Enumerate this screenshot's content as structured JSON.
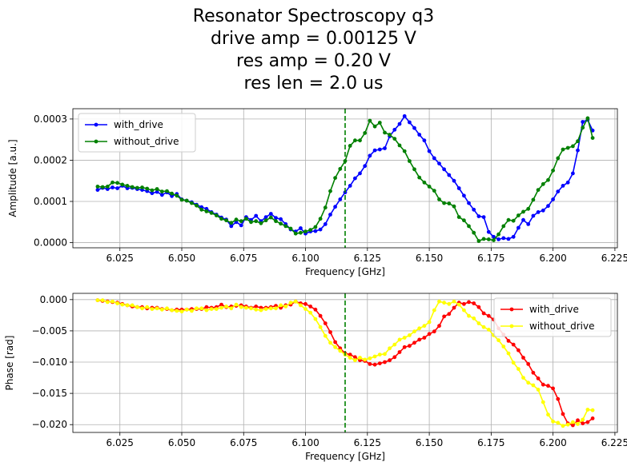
{
  "title": [
    "Resonator Spectroscopy q3",
    "drive amp = 0.00125 V",
    "res amp = 0.20 V",
    "res len = 2.0 us"
  ],
  "chart_data": [
    {
      "type": "line",
      "xlabel": "Frequency [GHz]",
      "ylabel": "Amplitude [a.u.]",
      "xlim": [
        6.006,
        6.226
      ],
      "ylim": [
        -1.25e-05,
        0.000325
      ],
      "xticks": [
        "6.025",
        "6.050",
        "6.075",
        "6.100",
        "6.125",
        "6.150",
        "6.175",
        "6.200",
        "6.225"
      ],
      "xtick_values": [
        6.025,
        6.05,
        6.075,
        6.1,
        6.125,
        6.15,
        6.175,
        6.2,
        6.225
      ],
      "yticks": [
        "0.0000",
        "0.0001",
        "0.0002",
        "0.0003"
      ],
      "ytick_values": [
        0,
        0.0001,
        0.0002,
        0.0003
      ],
      "grid": true,
      "legend": "top-left",
      "vline": {
        "x": 6.116,
        "color": "#008000",
        "style": "dashed"
      },
      "x": {
        "start": 6.016,
        "stop": 6.216,
        "count": 101
      },
      "series": [
        {
          "name": "with_drive",
          "color": "#0000ff",
          "values": [
            0.000128,
            0.000133,
            0.00013,
            0.000134,
            0.000132,
            0.000138,
            0.000132,
            0.000133,
            0.00013,
            0.000128,
            0.000125,
            0.00012,
            0.000123,
            0.000116,
            0.000122,
            0.000113,
            0.000118,
            0.000105,
            0.000102,
            9.8e-05,
            9.2e-05,
            8.6e-05,
            8.2e-05,
            7.4e-05,
            6.8e-05,
            6.1e-05,
            5.6e-05,
            4e-05,
            5e-05,
            4.2e-05,
            6.2e-05,
            5.5e-05,
            6.5e-05,
            5.2e-05,
            6.2e-05,
            7e-05,
            6e-05,
            5.7e-05,
            4.5e-05,
            3.2e-05,
            2.7e-05,
            3.5e-05,
            2.2e-05,
            2.7e-05,
            2.8e-05,
            3.2e-05,
            4.5e-05,
            6.8e-05,
            8.7e-05,
            0.000105,
            0.000122,
            0.000138,
            0.000156,
            0.000168,
            0.000186,
            0.000211,
            0.000224,
            0.000226,
            0.000229,
            0.000258,
            0.000274,
            0.000288,
            0.000307,
            0.000292,
            0.000278,
            0.000262,
            0.000248,
            0.000222,
            0.000205,
            0.000192,
            0.000178,
            0.000164,
            0.00015,
            0.000132,
            0.000114,
            9.6e-05,
            8e-05,
            6.4e-05,
            6.2e-05,
            2.6e-05,
            1.4e-05,
            8e-06,
            1.1e-05,
            9e-06,
            1.4e-05,
            3.6e-05,
            5.5e-05,
            4.5e-05,
            6.5e-05,
            7.4e-05,
            7.8e-05,
            8.9e-05,
            0.000105,
            0.000124,
            0.000138,
            0.000146,
            0.000168,
            0.000224,
            0.000293,
            0.000298,
            0.000272
          ]
        },
        {
          "name": "without_drive",
          "color": "#008000",
          "values": [
            0.000136,
            0.000135,
            0.000136,
            0.000146,
            0.000145,
            0.000141,
            0.000138,
            0.000135,
            0.000133,
            0.000134,
            0.000131,
            0.000127,
            0.00013,
            0.000124,
            0.000125,
            0.000119,
            0.000114,
            0.000104,
            0.000102,
            9.6e-05,
            9e-05,
            8e-05,
            7.6e-05,
            7.2e-05,
            6.6e-05,
            5.8e-05,
            5.4e-05,
            4.8e-05,
            5.6e-05,
            5.2e-05,
            5.8e-05,
            5e-05,
            5.2e-05,
            4.7e-05,
            5.4e-05,
            6.1e-05,
            5.2e-05,
            4.6e-05,
            4e-05,
            3.4e-05,
            2.2e-05,
            2.4e-05,
            2.7e-05,
            3.1e-05,
            3.8e-05,
            5.8e-05,
            8.5e-05,
            0.000125,
            0.000157,
            0.000179,
            0.000198,
            0.000235,
            0.000248,
            0.000248,
            0.000266,
            0.000296,
            0.000282,
            0.000291,
            0.000267,
            0.000262,
            0.000252,
            0.000236,
            0.000222,
            0.000198,
            0.000178,
            0.000158,
            0.000146,
            0.000136,
            0.000126,
            0.000105,
            9.6e-05,
            9.5e-05,
            8.8e-05,
            6.2e-05,
            5.4e-05,
            4e-05,
            2.4e-05,
            4e-06,
            9e-06,
            8e-06,
            6e-06,
            2e-05,
            4e-05,
            5.5e-05,
            5.3e-05,
            6.6e-05,
            7.5e-05,
            8.2e-05,
            0.000104,
            0.000128,
            0.000142,
            0.000152,
            0.000175,
            0.000205,
            0.000226,
            0.00023,
            0.000234,
            0.000246,
            0.000279,
            0.000302,
            0.000254
          ]
        }
      ]
    },
    {
      "type": "line",
      "xlabel": "Frequency [GHz]",
      "ylabel": "Phase [rad]",
      "xlim": [
        6.006,
        6.226
      ],
      "ylim": [
        -0.02125,
        0.001
      ],
      "xticks": [
        "6.025",
        "6.050",
        "6.075",
        "6.100",
        "6.125",
        "6.150",
        "6.175",
        "6.200",
        "6.225"
      ],
      "xtick_values": [
        6.025,
        6.05,
        6.075,
        6.1,
        6.125,
        6.15,
        6.175,
        6.2,
        6.225
      ],
      "yticks": [
        "0.000",
        "−0.005",
        "−0.010",
        "−0.015",
        "−0.020"
      ],
      "ytick_values": [
        0,
        -0.005,
        -0.01,
        -0.015,
        -0.02
      ],
      "grid": true,
      "legend": "top-right",
      "vline": {
        "x": 6.116,
        "color": "#008000",
        "style": "dashed"
      },
      "x": {
        "start": 6.016,
        "stop": 6.216,
        "count": 101
      },
      "series": [
        {
          "name": "with_drive",
          "color": "#ff0000",
          "values": [
            -0.0001,
            -0.0002,
            -0.0003,
            -0.0004,
            -0.0005,
            -0.0007,
            -0.0009,
            -0.0011,
            -0.0012,
            -0.0012,
            -0.0014,
            -0.0013,
            -0.0013,
            -0.0015,
            -0.0015,
            -0.0017,
            -0.0016,
            -0.0016,
            -0.0016,
            -0.0015,
            -0.0015,
            -0.0015,
            -0.0012,
            -0.0013,
            -0.0012,
            -0.0008,
            -0.0012,
            -0.0011,
            -0.001,
            -0.0009,
            -0.0011,
            -0.0013,
            -0.0011,
            -0.0013,
            -0.0013,
            -0.0012,
            -0.001,
            -0.0013,
            -0.0009,
            -0.0008,
            -0.0003,
            -0.0006,
            -0.0007,
            -0.0011,
            -0.0016,
            -0.0026,
            -0.0038,
            -0.0052,
            -0.0068,
            -0.0078,
            -0.0086,
            -0.0088,
            -0.0092,
            -0.0097,
            -0.0098,
            -0.0103,
            -0.0104,
            -0.0102,
            -0.01,
            -0.0097,
            -0.0092,
            -0.0084,
            -0.0076,
            -0.0074,
            -0.0069,
            -0.0064,
            -0.0061,
            -0.0055,
            -0.0051,
            -0.0042,
            -0.0027,
            -0.0023,
            -0.0013,
            -0.0005,
            -0.0007,
            -0.0004,
            -0.0006,
            -0.0012,
            -0.0022,
            -0.0026,
            -0.0032,
            -0.0046,
            -0.0056,
            -0.0066,
            -0.0072,
            -0.0081,
            -0.0093,
            -0.0103,
            -0.0117,
            -0.0126,
            -0.0136,
            -0.0138,
            -0.0142,
            -0.0159,
            -0.0183,
            -0.0198,
            -0.0201,
            -0.0193,
            -0.0198,
            -0.0196,
            -0.019
          ]
        },
        {
          "name": "without_drive",
          "color": "#ffff00",
          "values": [
            -0.0001,
            -0.0001,
            -0.0004,
            -0.0003,
            -0.0006,
            -0.0008,
            -0.0009,
            -0.0009,
            -0.0012,
            -0.0014,
            -0.0012,
            -0.0015,
            -0.0014,
            -0.0016,
            -0.0014,
            -0.0017,
            -0.0018,
            -0.0019,
            -0.0016,
            -0.0018,
            -0.0014,
            -0.0014,
            -0.0017,
            -0.0015,
            -0.0015,
            -0.0013,
            -0.0011,
            -0.0014,
            -0.0008,
            -0.0012,
            -0.0013,
            -0.0014,
            -0.0016,
            -0.0017,
            -0.0015,
            -0.0014,
            -0.0014,
            -0.0009,
            -0.0011,
            -0.0005,
            -0.0003,
            -0.0009,
            -0.0015,
            -0.0021,
            -0.0031,
            -0.0044,
            -0.0058,
            -0.0069,
            -0.0076,
            -0.0082,
            -0.0088,
            -0.0093,
            -0.0097,
            -0.0093,
            -0.0096,
            -0.0094,
            -0.0091,
            -0.0088,
            -0.0087,
            -0.0078,
            -0.0072,
            -0.0064,
            -0.0061,
            -0.0057,
            -0.0051,
            -0.0046,
            -0.0042,
            -0.0036,
            -0.0017,
            -0.0003,
            -0.0005,
            -0.0007,
            -0.0003,
            -0.0008,
            -0.0017,
            -0.0026,
            -0.003,
            -0.0038,
            -0.0044,
            -0.0048,
            -0.0057,
            -0.0065,
            -0.0075,
            -0.0086,
            -0.0101,
            -0.0111,
            -0.0125,
            -0.0133,
            -0.0137,
            -0.0144,
            -0.0164,
            -0.0184,
            -0.0195,
            -0.0197,
            -0.0202,
            -0.02,
            -0.0196,
            -0.0199,
            -0.0192,
            -0.0176,
            -0.0177
          ]
        }
      ]
    }
  ]
}
